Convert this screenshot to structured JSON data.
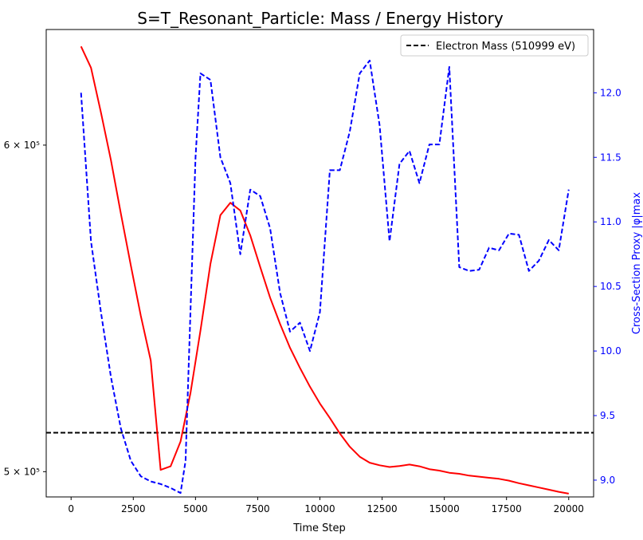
{
  "chart_data": {
    "type": "line",
    "title": "S=T_Resonant_Particle: Mass / Energy History",
    "xlabel": "Time Step",
    "ylabel_left": "",
    "ylabel_right": "Cross-Section Proxy |φ|max",
    "xlim": [
      -1000,
      21000
    ],
    "ylim_left": [
      493000,
      640000
    ],
    "y_left_scale": "log",
    "ylim_right": [
      8.87,
      12.49
    ],
    "x_ticks": [
      0,
      2500,
      5000,
      7500,
      10000,
      12500,
      15000,
      17500,
      20000
    ],
    "x_tick_labels": [
      "0",
      "2500",
      "5000",
      "7500",
      "10000",
      "12500",
      "15000",
      "17500",
      "20000"
    ],
    "y_left_ticks": [
      500000,
      600000
    ],
    "y_left_tick_labels": [
      "5 × 10⁵",
      "6 × 10⁵"
    ],
    "y_right_ticks": [
      9.0,
      9.5,
      10.0,
      10.5,
      11.0,
      11.5,
      12.0
    ],
    "y_right_tick_labels": [
      "9.0",
      "9.5",
      "10.0",
      "10.5",
      "11.0",
      "11.5",
      "12.0"
    ],
    "legend": {
      "placement": "top-right",
      "entries": [
        "Electron Mass (510999 eV)"
      ]
    },
    "reference_line": {
      "value": 510999,
      "axis": "left",
      "color": "#000000",
      "style": "dashed"
    },
    "series": [
      {
        "axis": "left",
        "color": "#ff0000",
        "style": "solid",
        "x": [
          400,
          800,
          1200,
          1600,
          2000,
          2400,
          2800,
          3200,
          3600,
          4000,
          4400,
          4800,
          5200,
          5600,
          6000,
          6400,
          6800,
          7200,
          7600,
          8000,
          8400,
          8800,
          9200,
          9600,
          10000,
          10400,
          10800,
          11200,
          11600,
          12000,
          12400,
          12800,
          13200,
          13600,
          14000,
          14400,
          14800,
          15200,
          15600,
          16000,
          16400,
          16800,
          17200,
          17600,
          18000,
          18400,
          18800,
          19200,
          19600,
          20000
        ],
        "y": [
          634000,
          626500,
          611000,
          595000,
          577500,
          561000,
          545500,
          532000,
          500500,
          501500,
          508500,
          522500,
          541000,
          561500,
          577000,
          581000,
          578500,
          570500,
          560500,
          551000,
          543000,
          535800,
          529800,
          524300,
          519400,
          515200,
          510800,
          507000,
          504200,
          502500,
          501800,
          501300,
          501600,
          502000,
          501500,
          500700,
          500300,
          499700,
          499400,
          498900,
          498600,
          498300,
          498000,
          497500,
          496800,
          496200,
          495600,
          495000,
          494400,
          493900
        ]
      },
      {
        "axis": "right",
        "color": "#0000ff",
        "style": "dashed",
        "x": [
          400,
          800,
          1200,
          1600,
          2000,
          2400,
          2800,
          3200,
          3600,
          4000,
          4400,
          4600,
          5000,
          5200,
          5600,
          6000,
          6400,
          6800,
          7200,
          7600,
          8000,
          8400,
          8800,
          9200,
          9600,
          10000,
          10400,
          10800,
          11200,
          11600,
          12000,
          12400,
          12800,
          13200,
          13600,
          14000,
          14400,
          14800,
          15200,
          15600,
          16000,
          16400,
          16800,
          17200,
          17600,
          18000,
          18400,
          18800,
          19200,
          19600,
          20000
        ],
        "y": [
          12.0,
          10.85,
          10.3,
          9.8,
          9.4,
          9.15,
          9.03,
          8.99,
          8.97,
          8.94,
          8.9,
          9.15,
          11.5,
          12.15,
          12.1,
          11.5,
          11.3,
          10.75,
          11.25,
          11.2,
          10.95,
          10.45,
          10.15,
          10.22,
          10.0,
          10.3,
          11.4,
          11.4,
          11.7,
          12.15,
          12.25,
          11.75,
          10.85,
          11.45,
          11.55,
          11.3,
          11.6,
          11.6,
          12.2,
          10.65,
          10.62,
          10.63,
          10.8,
          10.78,
          10.91,
          10.9,
          10.62,
          10.7,
          10.86,
          10.78,
          11.25
        ]
      }
    ]
  }
}
